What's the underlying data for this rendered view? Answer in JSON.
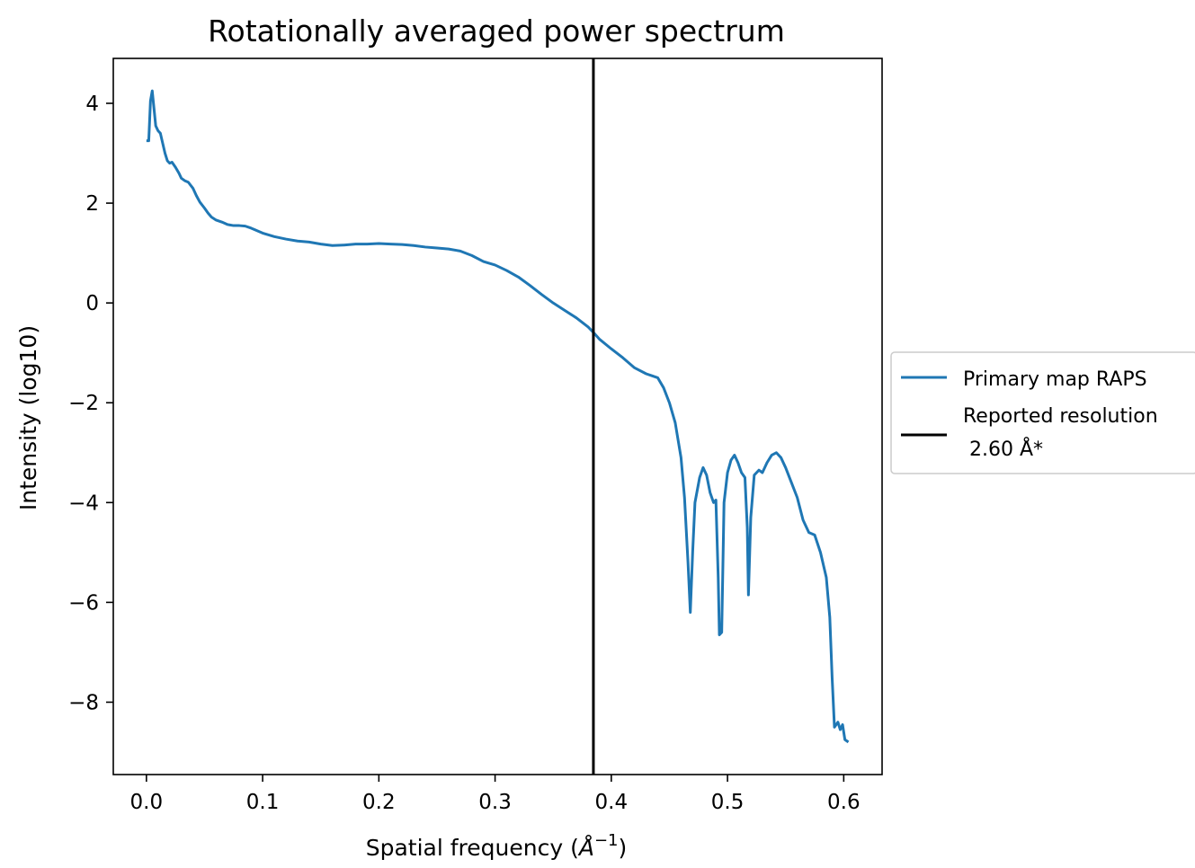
{
  "chart_data": {
    "type": "line",
    "title": "Rotationally averaged power spectrum",
    "xlabel": "Spatial frequency (Å⁻¹)",
    "xlabel_main": "Spatial frequency (",
    "xlabel_unit": "Å",
    "xlabel_exp": "−1",
    "xlabel_close": ")",
    "ylabel": "Intensity (log10)",
    "xlim": [
      -0.0285,
      0.633
    ],
    "ylim": [
      -9.45,
      4.9
    ],
    "xticks": [
      {
        "value": 0.0,
        "label": "0.0"
      },
      {
        "value": 0.1,
        "label": "0.1"
      },
      {
        "value": 0.2,
        "label": "0.2"
      },
      {
        "value": 0.3,
        "label": "0.3"
      },
      {
        "value": 0.4,
        "label": "0.4"
      },
      {
        "value": 0.5,
        "label": "0.5"
      },
      {
        "value": 0.6,
        "label": "0.6"
      }
    ],
    "yticks": [
      {
        "value": 4,
        "label": "4"
      },
      {
        "value": 2,
        "label": "2"
      },
      {
        "value": 0,
        "label": "0"
      },
      {
        "value": -2,
        "label": "−2"
      },
      {
        "value": -4,
        "label": "−4"
      },
      {
        "value": -6,
        "label": "−6"
      },
      {
        "value": -8,
        "label": "−8"
      }
    ],
    "grid": false,
    "legend_position": "center-right outside",
    "series": [
      {
        "name": "Primary map RAPS",
        "color": "#1f77b4",
        "points": [
          [
            0.0,
            3.25
          ],
          [
            0.002,
            3.25
          ],
          [
            0.0035,
            4.05
          ],
          [
            0.005,
            4.25
          ],
          [
            0.0065,
            3.9
          ],
          [
            0.008,
            3.55
          ],
          [
            0.01,
            3.45
          ],
          [
            0.012,
            3.4
          ],
          [
            0.014,
            3.2
          ],
          [
            0.016,
            3.0
          ],
          [
            0.018,
            2.85
          ],
          [
            0.02,
            2.8
          ],
          [
            0.022,
            2.82
          ],
          [
            0.025,
            2.72
          ],
          [
            0.028,
            2.6
          ],
          [
            0.03,
            2.5
          ],
          [
            0.033,
            2.45
          ],
          [
            0.036,
            2.42
          ],
          [
            0.04,
            2.3
          ],
          [
            0.043,
            2.15
          ],
          [
            0.046,
            2.02
          ],
          [
            0.05,
            1.9
          ],
          [
            0.053,
            1.8
          ],
          [
            0.056,
            1.72
          ],
          [
            0.06,
            1.66
          ],
          [
            0.065,
            1.62
          ],
          [
            0.07,
            1.57
          ],
          [
            0.075,
            1.55
          ],
          [
            0.08,
            1.55
          ],
          [
            0.085,
            1.54
          ],
          [
            0.09,
            1.5
          ],
          [
            0.095,
            1.45
          ],
          [
            0.1,
            1.4
          ],
          [
            0.11,
            1.33
          ],
          [
            0.12,
            1.28
          ],
          [
            0.13,
            1.24
          ],
          [
            0.14,
            1.22
          ],
          [
            0.15,
            1.18
          ],
          [
            0.16,
            1.15
          ],
          [
            0.17,
            1.16
          ],
          [
            0.18,
            1.18
          ],
          [
            0.19,
            1.18
          ],
          [
            0.2,
            1.19
          ],
          [
            0.21,
            1.18
          ],
          [
            0.22,
            1.17
          ],
          [
            0.23,
            1.15
          ],
          [
            0.24,
            1.12
          ],
          [
            0.25,
            1.1
          ],
          [
            0.26,
            1.08
          ],
          [
            0.27,
            1.04
          ],
          [
            0.28,
            0.95
          ],
          [
            0.29,
            0.83
          ],
          [
            0.3,
            0.76
          ],
          [
            0.31,
            0.65
          ],
          [
            0.32,
            0.52
          ],
          [
            0.33,
            0.35
          ],
          [
            0.34,
            0.17
          ],
          [
            0.35,
            0.0
          ],
          [
            0.36,
            -0.15
          ],
          [
            0.37,
            -0.3
          ],
          [
            0.38,
            -0.48
          ],
          [
            0.385,
            -0.6
          ],
          [
            0.39,
            -0.73
          ],
          [
            0.4,
            -0.92
          ],
          [
            0.41,
            -1.1
          ],
          [
            0.42,
            -1.3
          ],
          [
            0.43,
            -1.42
          ],
          [
            0.435,
            -1.46
          ],
          [
            0.44,
            -1.5
          ],
          [
            0.445,
            -1.7
          ],
          [
            0.45,
            -2.0
          ],
          [
            0.455,
            -2.4
          ],
          [
            0.46,
            -3.1
          ],
          [
            0.463,
            -3.9
          ],
          [
            0.466,
            -5.2
          ],
          [
            0.468,
            -6.2
          ],
          [
            0.47,
            -5.0
          ],
          [
            0.472,
            -4.0
          ],
          [
            0.476,
            -3.5
          ],
          [
            0.479,
            -3.3
          ],
          [
            0.482,
            -3.45
          ],
          [
            0.485,
            -3.8
          ],
          [
            0.488,
            -4.0
          ],
          [
            0.49,
            -3.95
          ],
          [
            0.492,
            -5.5
          ],
          [
            0.493,
            -6.65
          ],
          [
            0.495,
            -6.6
          ],
          [
            0.497,
            -4.0
          ],
          [
            0.5,
            -3.4
          ],
          [
            0.503,
            -3.15
          ],
          [
            0.506,
            -3.05
          ],
          [
            0.509,
            -3.2
          ],
          [
            0.512,
            -3.4
          ],
          [
            0.515,
            -3.5
          ],
          [
            0.517,
            -4.5
          ],
          [
            0.518,
            -5.85
          ],
          [
            0.52,
            -4.3
          ],
          [
            0.523,
            -3.45
          ],
          [
            0.527,
            -3.35
          ],
          [
            0.53,
            -3.4
          ],
          [
            0.534,
            -3.2
          ],
          [
            0.538,
            -3.05
          ],
          [
            0.542,
            -3.0
          ],
          [
            0.546,
            -3.1
          ],
          [
            0.55,
            -3.3
          ],
          [
            0.555,
            -3.6
          ],
          [
            0.56,
            -3.9
          ],
          [
            0.565,
            -4.35
          ],
          [
            0.57,
            -4.6
          ],
          [
            0.575,
            -4.65
          ],
          [
            0.58,
            -5.0
          ],
          [
            0.585,
            -5.5
          ],
          [
            0.588,
            -6.3
          ],
          [
            0.59,
            -7.5
          ],
          [
            0.592,
            -8.5
          ],
          [
            0.595,
            -8.4
          ],
          [
            0.597,
            -8.55
          ],
          [
            0.599,
            -8.45
          ],
          [
            0.601,
            -8.75
          ],
          [
            0.604,
            -8.8
          ]
        ]
      },
      {
        "name": "Reported resolution\n 2.60 Å*",
        "name_line1": "Reported resolution",
        "name_line2": " 2.60 Å*",
        "color": "#000000",
        "type": "vline",
        "x": 0.3846
      }
    ]
  }
}
